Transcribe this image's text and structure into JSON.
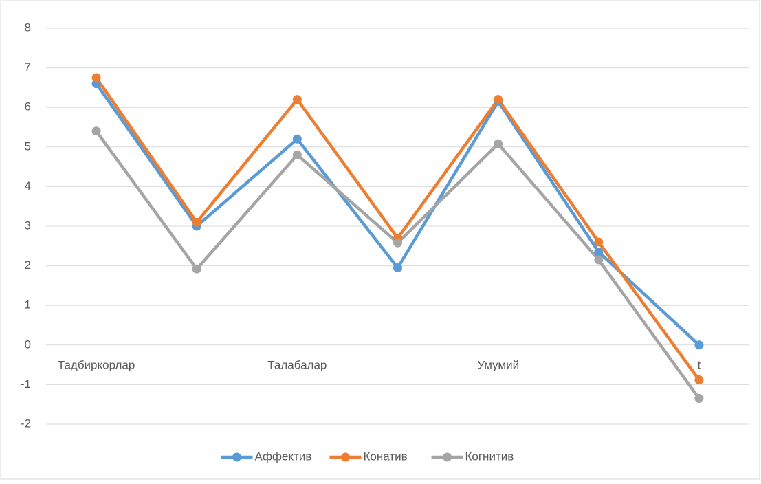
{
  "chart_data": {
    "type": "line",
    "categories": [
      "Тадбиркорлар",
      null,
      "Талабалар",
      null,
      "Умумий",
      null,
      "t"
    ],
    "series": [
      {
        "name": "Аффектив",
        "color": "#5b9bd5",
        "values": [
          6.6,
          3.0,
          5.2,
          1.95,
          6.15,
          2.35,
          0.0
        ]
      },
      {
        "name": "Конатив",
        "color": "#ed7d31",
        "values": [
          6.75,
          3.1,
          6.2,
          2.7,
          6.2,
          2.6,
          -0.88
        ]
      },
      {
        "name": "Когнитив",
        "color": "#a5a5a5",
        "values": [
          5.4,
          1.92,
          4.8,
          2.58,
          5.08,
          2.15,
          -1.35
        ]
      }
    ],
    "ylim": [
      -2,
      8
    ],
    "yticks": [
      -2,
      -1,
      0,
      1,
      2,
      3,
      4,
      5,
      6,
      7,
      8
    ],
    "grid": true,
    "legend": "bottom"
  }
}
